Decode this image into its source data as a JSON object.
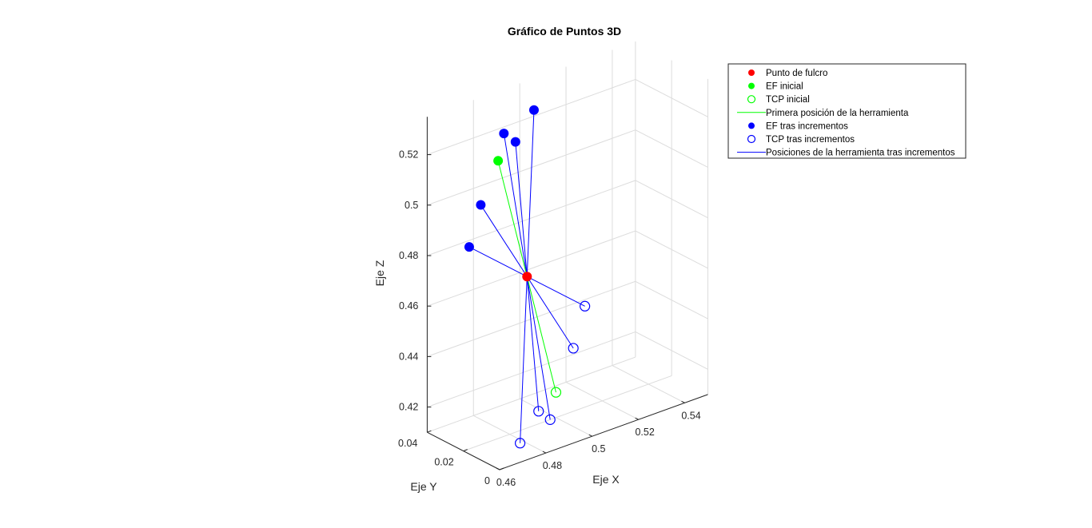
{
  "chart_data": {
    "type": "scatter",
    "title": "Gráfico de Puntos 3D",
    "xlabel": "Eje X",
    "ylabel": "Eje Y",
    "zlabel": "Eje Z",
    "x_ticks": [
      "0.46",
      "0.48",
      "0.5",
      "0.52",
      "0.54"
    ],
    "y_ticks": [
      "0",
      "0.02",
      "0.04"
    ],
    "z_ticks": [
      "0.42",
      "0.44",
      "0.46",
      "0.48",
      "0.5",
      "0.52"
    ],
    "grid": true,
    "legend_position": "top-right",
    "colors": {
      "fulcrum": "#ff0000",
      "initial": "#00ff00",
      "increments": "#0000ff",
      "grid": "#dcdcdc",
      "axis": "#262626"
    },
    "fulcrum_point": {
      "x": 0.4875,
      "y": 0.02,
      "z": 0.47
    },
    "initial": {
      "ef": {
        "x": 0.475,
        "y": 0.02,
        "z": 0.52
      },
      "tcp": {
        "x": 0.5,
        "y": 0.02,
        "z": 0.42
      }
    },
    "increments": [
      {
        "ef": {
          "x": 0.4905,
          "y": 0.02,
          "z": 0.535
        },
        "tcp": {
          "x": 0.4845,
          "y": 0.02,
          "z": 0.405
        }
      },
      {
        "ef": {
          "x": 0.4825,
          "y": 0.02,
          "z": 0.525
        },
        "tcp": {
          "x": 0.4925,
          "y": 0.02,
          "z": 0.415
        }
      },
      {
        "ef": {
          "x": 0.4775,
          "y": 0.02,
          "z": 0.53
        },
        "tcp": {
          "x": 0.4975,
          "y": 0.02,
          "z": 0.41
        }
      },
      {
        "ef": {
          "x": 0.4675,
          "y": 0.02,
          "z": 0.505
        },
        "tcp": {
          "x": 0.5075,
          "y": 0.02,
          "z": 0.435
        }
      },
      {
        "ef": {
          "x": 0.4625,
          "y": 0.02,
          "z": 0.49
        },
        "tcp": {
          "x": 0.5125,
          "y": 0.02,
          "z": 0.45
        }
      }
    ],
    "series": [
      {
        "name": "Punto de fulcro",
        "marker": "filled-circle",
        "color": "#ff0000"
      },
      {
        "name": "EF inicial",
        "marker": "filled-circle",
        "color": "#00ff00"
      },
      {
        "name": "TCP inicial",
        "marker": "open-circle",
        "color": "#00ff00"
      },
      {
        "name": "Primera posición de la herramienta",
        "marker": "line",
        "color": "#00ff00"
      },
      {
        "name": "EF tras incrementos",
        "marker": "filled-circle",
        "color": "#0000ff"
      },
      {
        "name": "TCP tras incrementos",
        "marker": "open-circle",
        "color": "#0000ff"
      },
      {
        "name": "Posiciones de la herramienta tras incrementos",
        "marker": "line",
        "color": "#0000ff"
      }
    ]
  }
}
